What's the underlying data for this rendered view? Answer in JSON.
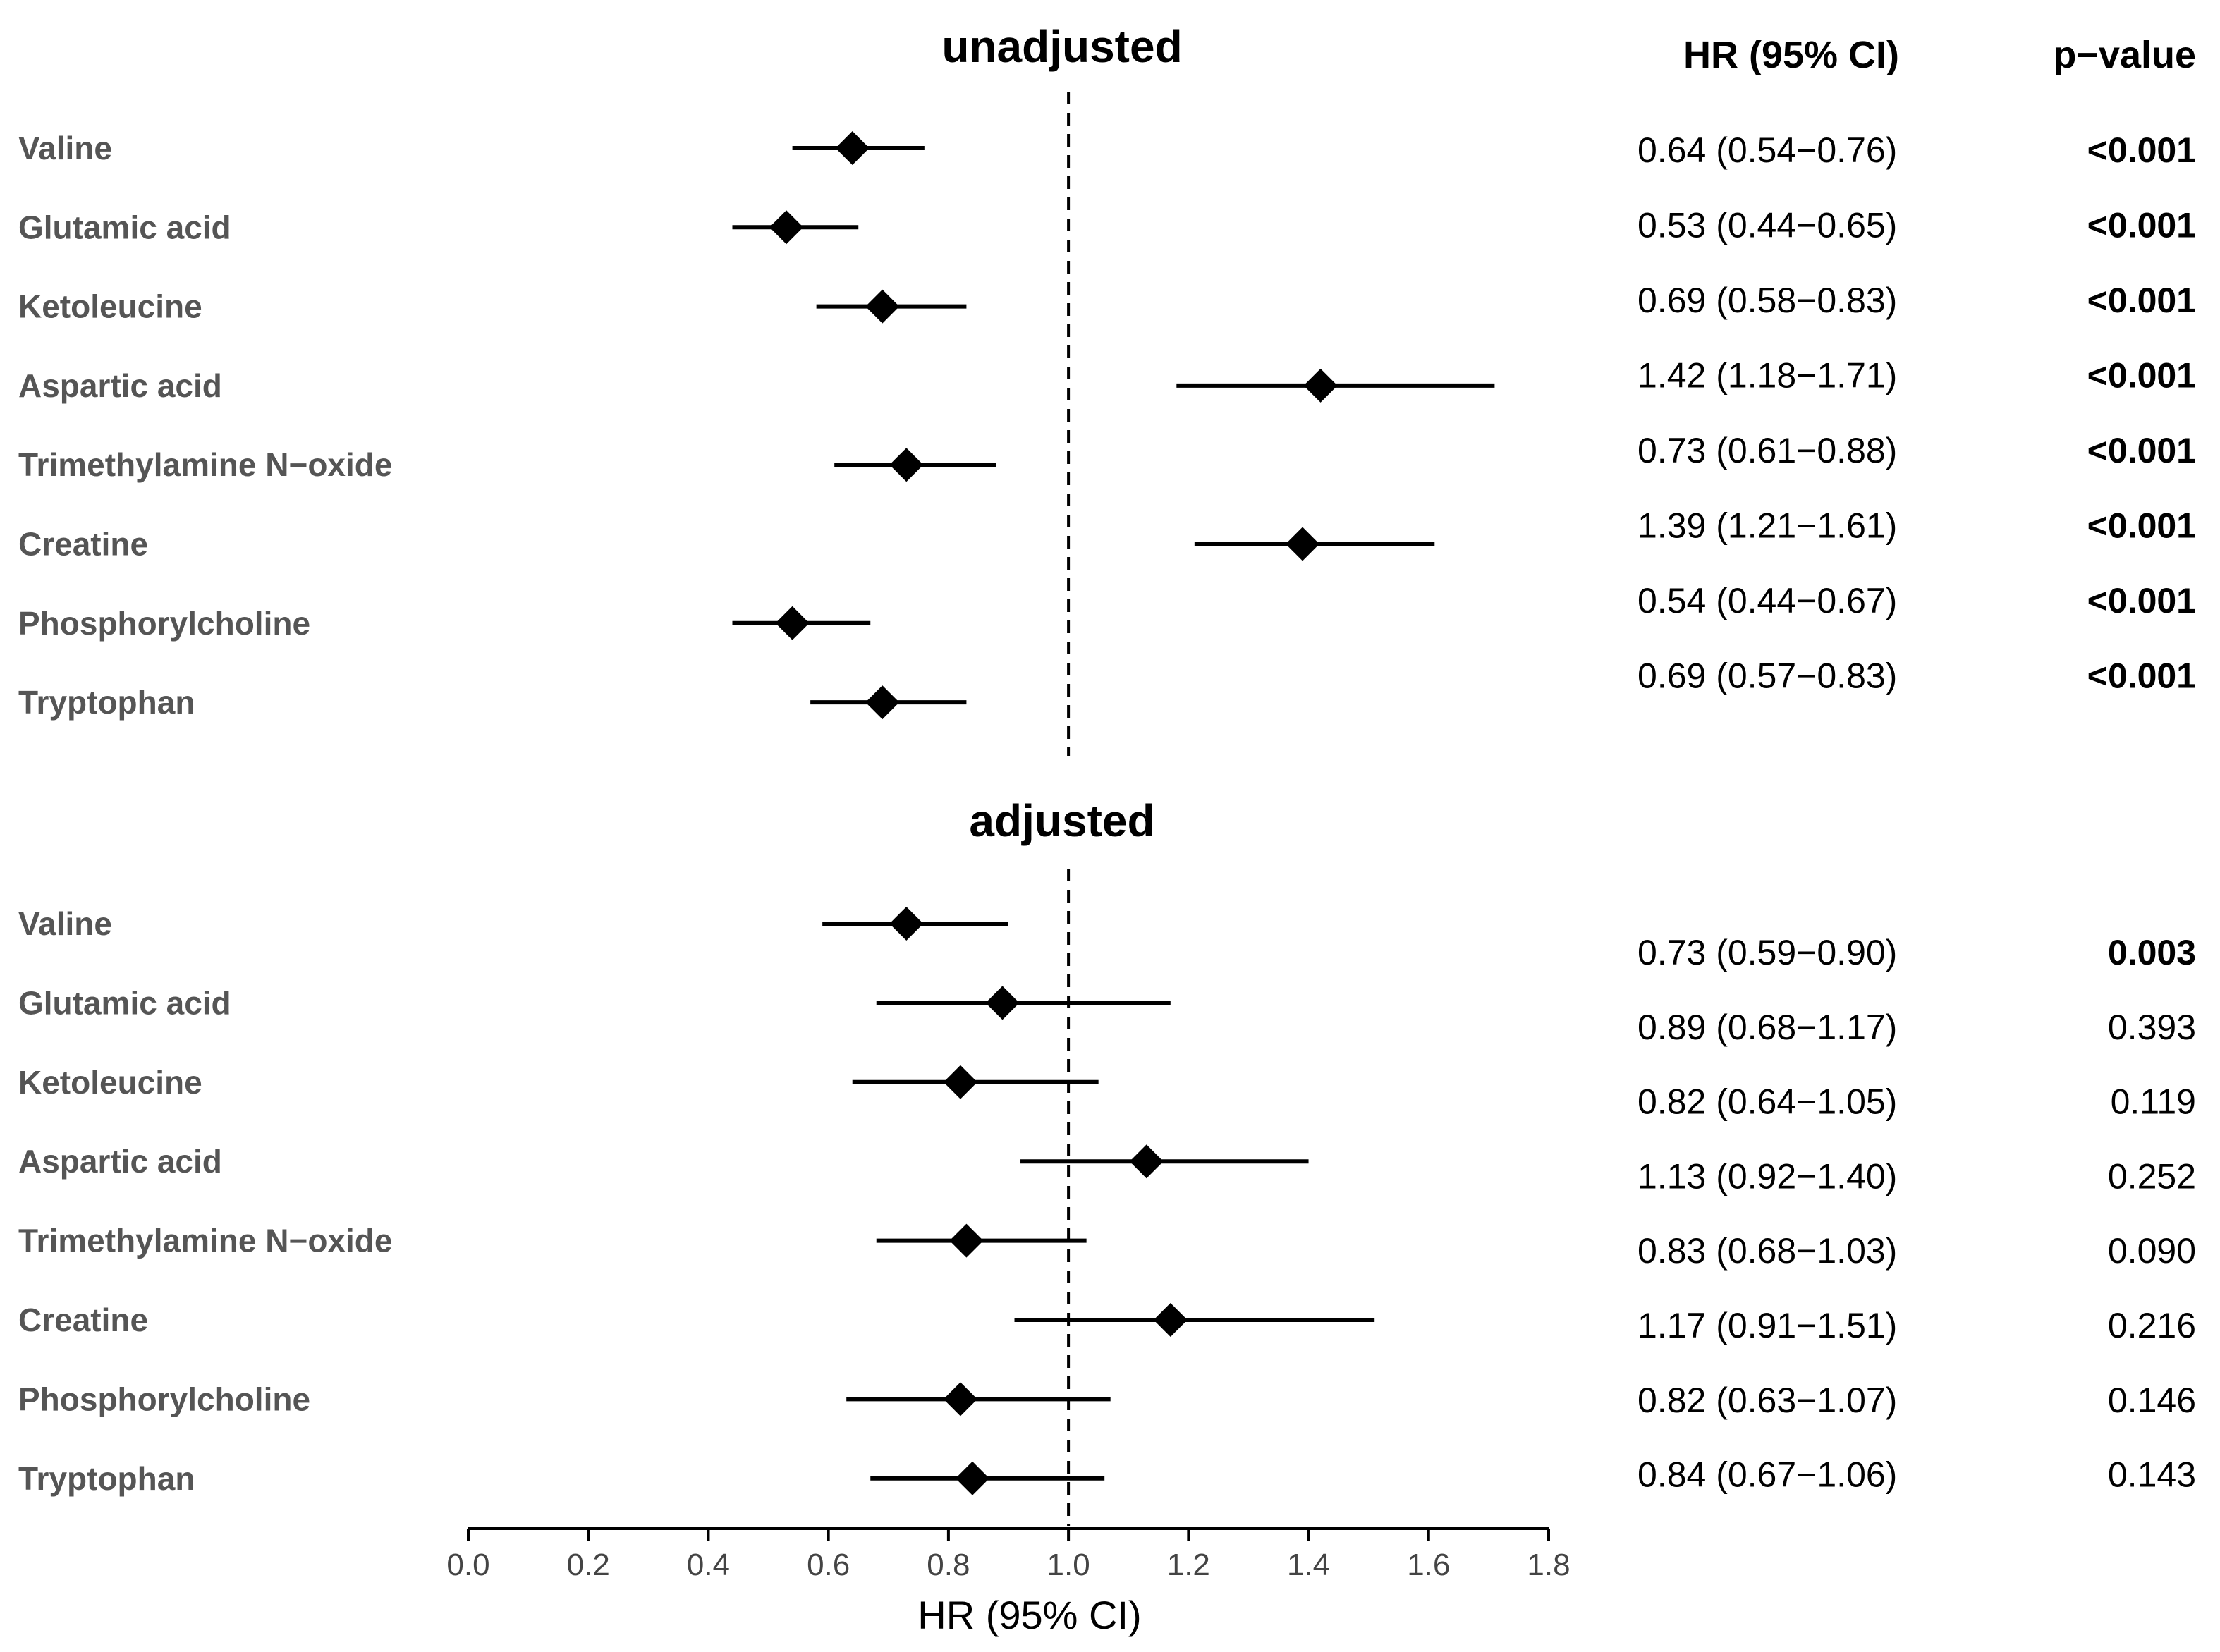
{
  "chart_data": {
    "type": "forest",
    "columns": {
      "hr_header": "HR (95% CI)",
      "p_header": "p−value"
    },
    "xlabel": "HR (95% CI)",
    "xlim": [
      0.0,
      1.8
    ],
    "xticks": [
      "0.0",
      "0.2",
      "0.4",
      "0.6",
      "0.8",
      "1.0",
      "1.2",
      "1.4",
      "1.6",
      "1.8"
    ],
    "reference_line": 1.0,
    "panels": [
      {
        "title": "unadjusted",
        "rows": [
          {
            "label": "Valine",
            "hr": 0.64,
            "lo": 0.54,
            "hi": 0.76,
            "hr_text": "0.64 (0.54−0.76)",
            "p": "<0.001",
            "sig": true
          },
          {
            "label": "Glutamic acid",
            "hr": 0.53,
            "lo": 0.44,
            "hi": 0.65,
            "hr_text": "0.53 (0.44−0.65)",
            "p": "<0.001",
            "sig": true
          },
          {
            "label": "Ketoleucine",
            "hr": 0.69,
            "lo": 0.58,
            "hi": 0.83,
            "hr_text": "0.69 (0.58−0.83)",
            "p": "<0.001",
            "sig": true
          },
          {
            "label": "Aspartic acid",
            "hr": 1.42,
            "lo": 1.18,
            "hi": 1.71,
            "hr_text": "1.42 (1.18−1.71)",
            "p": "<0.001",
            "sig": true
          },
          {
            "label": "Trimethylamine N−oxide",
            "hr": 0.73,
            "lo": 0.61,
            "hi": 0.88,
            "hr_text": "0.73 (0.61−0.88)",
            "p": "<0.001",
            "sig": true
          },
          {
            "label": "Creatine",
            "hr": 1.39,
            "lo": 1.21,
            "hi": 1.61,
            "hr_text": "1.39 (1.21−1.61)",
            "p": "<0.001",
            "sig": true
          },
          {
            "label": "Phosphorylcholine",
            "hr": 0.54,
            "lo": 0.44,
            "hi": 0.67,
            "hr_text": "0.54 (0.44−0.67)",
            "p": "<0.001",
            "sig": true
          },
          {
            "label": "Tryptophan",
            "hr": 0.69,
            "lo": 0.57,
            "hi": 0.83,
            "hr_text": "0.69 (0.57−0.83)",
            "p": "<0.001",
            "sig": true
          }
        ]
      },
      {
        "title": "adjusted",
        "rows": [
          {
            "label": "Valine",
            "hr": 0.73,
            "lo": 0.59,
            "hi": 0.9,
            "hr_text": "0.73 (0.59−0.90)",
            "p": "0.003",
            "sig": true
          },
          {
            "label": "Glutamic acid",
            "hr": 0.89,
            "lo": 0.68,
            "hi": 1.17,
            "hr_text": "0.89 (0.68−1.17)",
            "p": "0.393",
            "sig": false
          },
          {
            "label": "Ketoleucine",
            "hr": 0.82,
            "lo": 0.64,
            "hi": 1.05,
            "hr_text": "0.82 (0.64−1.05)",
            "p": "0.119",
            "sig": false
          },
          {
            "label": "Aspartic acid",
            "hr": 1.13,
            "lo": 0.92,
            "hi": 1.4,
            "hr_text": "1.13 (0.92−1.40)",
            "p": "0.252",
            "sig": false
          },
          {
            "label": "Trimethylamine N−oxide",
            "hr": 0.83,
            "lo": 0.68,
            "hi": 1.03,
            "hr_text": "0.83 (0.68−1.03)",
            "p": "0.090",
            "sig": false
          },
          {
            "label": "Creatine",
            "hr": 1.17,
            "lo": 0.91,
            "hi": 1.51,
            "hr_text": "1.17 (0.91−1.51)",
            "p": "0.216",
            "sig": false
          },
          {
            "label": "Phosphorylcholine",
            "hr": 0.82,
            "lo": 0.63,
            "hi": 1.07,
            "hr_text": "0.82 (0.63−1.07)",
            "p": "0.146",
            "sig": false
          },
          {
            "label": "Tryptophan",
            "hr": 0.84,
            "lo": 0.67,
            "hi": 1.06,
            "hr_text": "0.84 (0.67−1.06)",
            "p": "0.143",
            "sig": false
          }
        ]
      }
    ]
  }
}
